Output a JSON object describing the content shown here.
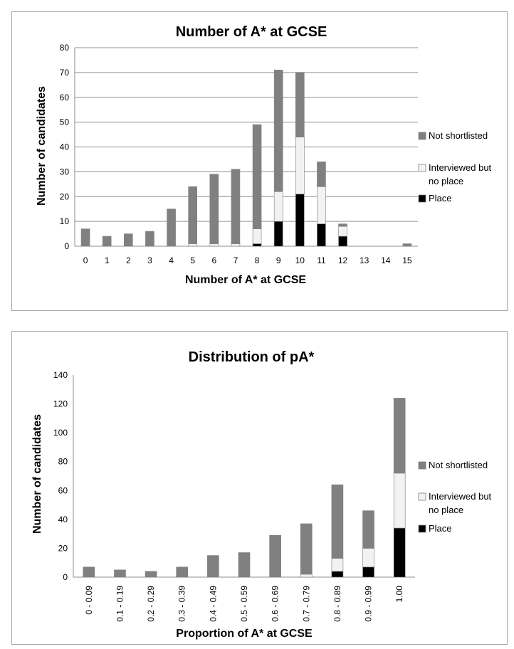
{
  "chart_data": [
    {
      "type": "bar",
      "stacked": true,
      "title": "Number of A* at GCSE",
      "xlabel": "Number of A* at GCSE",
      "ylabel": "Number of candidates",
      "ylim": [
        0,
        80
      ],
      "yticks": [
        0,
        10,
        20,
        30,
        40,
        50,
        60,
        70,
        80
      ],
      "grid": true,
      "legend_position": "right",
      "categories": [
        "0",
        "1",
        "2",
        "3",
        "4",
        "5",
        "6",
        "7",
        "8",
        "9",
        "10",
        "11",
        "12",
        "13",
        "14",
        "15"
      ],
      "series": [
        {
          "name": "Place",
          "color": "#000000",
          "values": [
            0,
            0,
            0,
            0,
            0,
            0,
            0,
            0,
            1,
            10,
            21,
            9,
            4,
            0,
            0,
            0
          ]
        },
        {
          "name": "Interviewed but no place",
          "color": "#f2f2f2",
          "values": [
            0,
            0,
            0,
            0,
            0,
            1,
            1,
            1,
            6,
            12,
            23,
            15,
            4,
            0,
            0,
            0
          ]
        },
        {
          "name": "Not shortlisted",
          "color": "#808080",
          "values": [
            7,
            4,
            5,
            6,
            15,
            23,
            28,
            30,
            42,
            49,
            26,
            10,
            1,
            0,
            0,
            1
          ]
        }
      ]
    },
    {
      "type": "bar",
      "stacked": true,
      "title": "Distribution of pA*",
      "xlabel": "Proportion of A* at GCSE",
      "ylabel": "Number of candidates",
      "ylim": [
        0,
        140
      ],
      "yticks": [
        0,
        20,
        40,
        60,
        80,
        100,
        120,
        140
      ],
      "grid": false,
      "legend_position": "right",
      "categories": [
        "0 - 0.09",
        "0.1 - 0.19",
        "0.2 - 0.29",
        "0.3 - 0.39",
        "0.4 - 0.49",
        "0.5 - 0.59",
        "0.6 - 0.69",
        "0.7 - 0.79",
        "0.8 - 0.89",
        "0.9 - 0.99",
        "1.00"
      ],
      "series": [
        {
          "name": "Place",
          "color": "#000000",
          "values": [
            0,
            0,
            0,
            0,
            0,
            0,
            0,
            0,
            4,
            7,
            34
          ]
        },
        {
          "name": "Interviewed but no place",
          "color": "#f2f2f2",
          "values": [
            0,
            0,
            0,
            0,
            0,
            0,
            0,
            2,
            9,
            13,
            38
          ]
        },
        {
          "name": "Not shortlisted",
          "color": "#808080",
          "values": [
            7,
            5,
            4,
            7,
            15,
            17,
            29,
            35,
            51,
            26,
            52
          ]
        }
      ]
    }
  ]
}
